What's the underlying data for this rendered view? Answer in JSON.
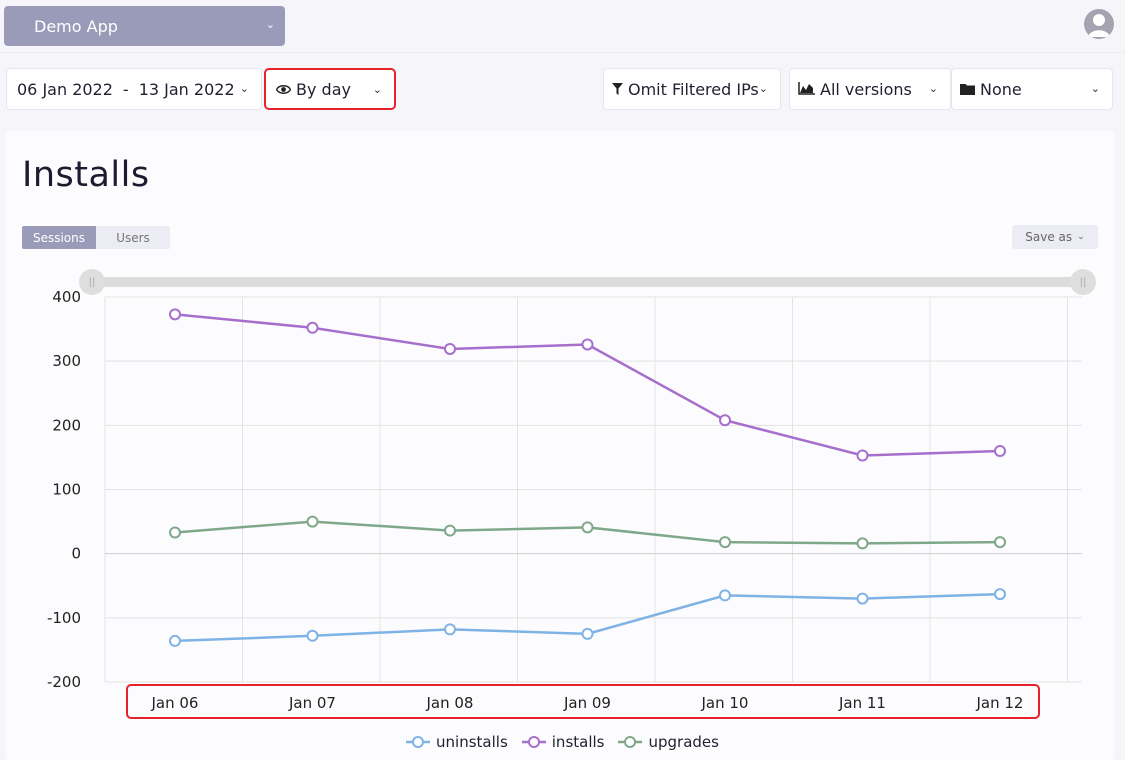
{
  "header": {
    "app_name": "Demo App",
    "avatar_icon": "user-avatar-icon"
  },
  "filters": {
    "date_start": "06 Jan 2022",
    "date_sep": "-",
    "date_end": "13 Jan 2022",
    "granularity": "By day",
    "ip_filter": "Omit Filtered IPs",
    "versions": "All versions",
    "segment": "None"
  },
  "main": {
    "title": "Installs",
    "toggle": {
      "sessions": "Sessions",
      "users": "Users",
      "active": "sessions"
    },
    "save_as": "Save as"
  },
  "colors": {
    "uninstalls": "#7fb3e6",
    "installs": "#a66fcc",
    "upgrades": "#7fa88a",
    "highlight": "#e8222a"
  },
  "chart_data": {
    "type": "line",
    "categories": [
      "Jan 06",
      "Jan 07",
      "Jan 08",
      "Jan 09",
      "Jan 10",
      "Jan 11",
      "Jan 12"
    ],
    "ylim": [
      -200,
      400
    ],
    "yticks": [
      400,
      300,
      200,
      100,
      0,
      -100,
      -200
    ],
    "grid": true,
    "legend_position": "bottom",
    "series": [
      {
        "name": "uninstalls",
        "values": [
          -136,
          -128,
          -118,
          -125,
          -65,
          -70,
          -63
        ]
      },
      {
        "name": "installs",
        "values": [
          373,
          352,
          319,
          326,
          208,
          153,
          160
        ]
      },
      {
        "name": "upgrades",
        "values": [
          33,
          50,
          36,
          41,
          18,
          16,
          18
        ]
      }
    ]
  }
}
